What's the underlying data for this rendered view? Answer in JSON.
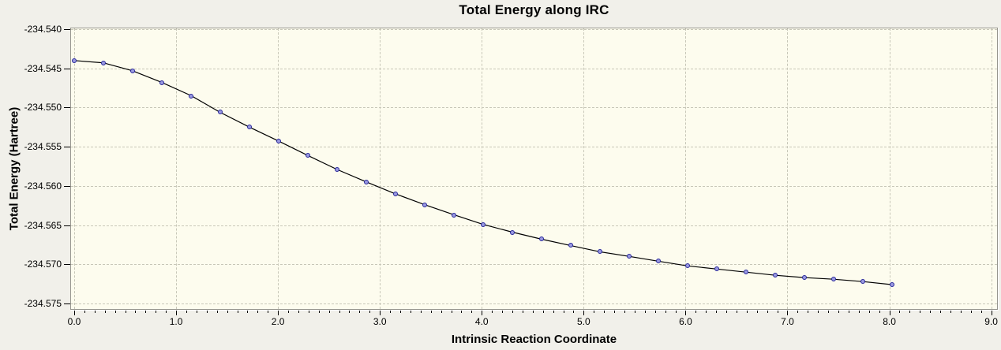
{
  "window": {
    "background": "#f1f0ea",
    "plot_background": "#fdfcee",
    "grid_color": "#c8c7b8",
    "frame_color": "#97968e",
    "line_color": "#000000",
    "marker_fill": "#9a99e0",
    "marker_stroke": "#27279a"
  },
  "chart_data": {
    "type": "line",
    "title": "Total Energy along IRC",
    "xlabel": "Intrinsic Reaction Coordinate",
    "ylabel": "Total Energy (Hartree)",
    "xlim": [
      0,
      9
    ],
    "ylim": [
      -234.575,
      -234.54
    ],
    "grid": "dashed, at every major tick",
    "legend_position": "none",
    "x_minor_tick_step": 0.1,
    "x_ticks": {
      "values": [
        0,
        1,
        2,
        3,
        4,
        5,
        6,
        7,
        8,
        9
      ],
      "labels": [
        "0.0",
        "1.0",
        "2.0",
        "3.0",
        "4.0",
        "5.0",
        "6.0",
        "7.0",
        "8.0",
        "9.0"
      ]
    },
    "y_ticks": {
      "values": [
        -234.54,
        -234.545,
        -234.55,
        -234.555,
        -234.56,
        -234.565,
        -234.57,
        -234.575
      ],
      "labels": [
        "-234.540",
        "-234.545",
        "-234.550",
        "-234.555",
        "-234.560",
        "-234.565",
        "-234.570",
        "-234.575"
      ]
    },
    "series": [
      {
        "name": "Total Energy",
        "x": [
          0.0,
          0.29,
          0.57,
          0.86,
          1.15,
          1.43,
          1.72,
          2.01,
          2.29,
          2.58,
          2.87,
          3.15,
          3.44,
          3.73,
          4.01,
          4.3,
          4.59,
          4.87,
          5.16,
          5.45,
          5.73,
          6.02,
          6.31,
          6.59,
          6.88,
          7.17,
          7.45,
          7.74,
          8.03
        ],
        "y": [
          -234.544,
          -234.5443,
          -234.5453,
          -234.5468,
          -234.5485,
          -234.5506,
          -234.5525,
          -234.5543,
          -234.5561,
          -234.5579,
          -234.5595,
          -234.561,
          -234.5624,
          -234.5637,
          -234.5649,
          -234.5659,
          -234.5668,
          -234.5676,
          -234.5684,
          -234.569,
          -234.5696,
          -234.5702,
          -234.5706,
          -234.571,
          -234.5714,
          -234.5717,
          -234.5719,
          -234.5722,
          -234.5726
        ]
      }
    ]
  }
}
